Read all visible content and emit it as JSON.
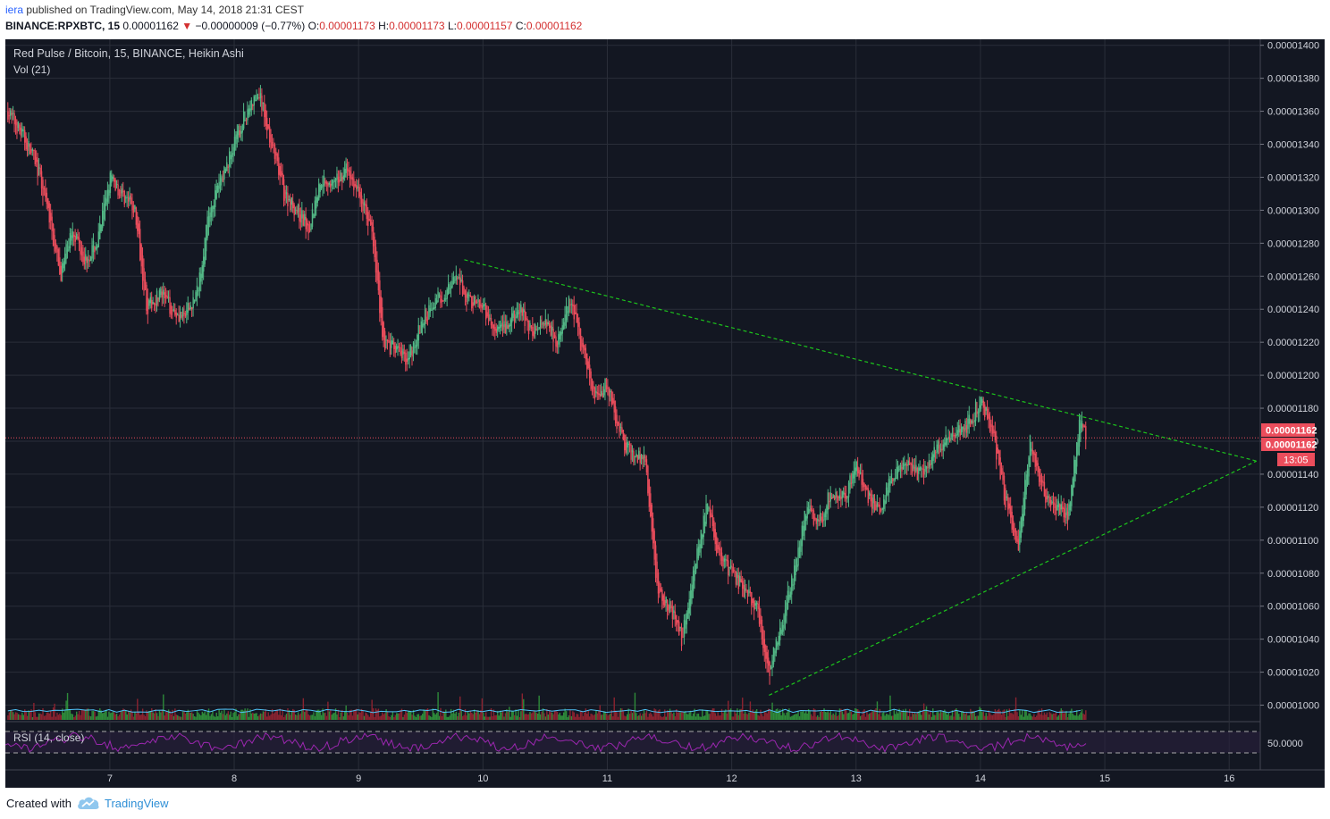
{
  "header": {
    "user": "iera",
    "published_text": "published on TradingView.com, May 14, 2018 21:31 CEST",
    "symbol": "BINANCE:RPXBTC, 15",
    "last": "0.00001162",
    "down_marker": "▼",
    "change": "−0.00000009 (−0.77%)",
    "o_label": "O:",
    "o_value": "0.00001173",
    "h_label": "H:",
    "h_value": "0.00001173",
    "l_label": "L:",
    "l_value": "0.00001157",
    "c_label": "C:",
    "c_value": "0.00001162"
  },
  "legend": {
    "title": "Red Pulse / Bitcoin, 15, BINANCE, Heikin Ashi",
    "volume": "Vol (21)",
    "rsi": "RSI (14, close)",
    "rsi_axis_label": "50.0000"
  },
  "price_labels": {
    "last_price": "0.00001162",
    "last_price_2": "0.00001162",
    "countdown": "13:05"
  },
  "footer": {
    "created_with": "Created with",
    "brand": "TradingView"
  },
  "colors": {
    "background": "#131722",
    "grid": "#2a2e39",
    "up": "#53b987",
    "down": "#eb4d5c",
    "trendline": "#1cc41c",
    "rsi": "#9c27b0",
    "vol_ma": "#4fc3f7"
  },
  "chart_data": {
    "type": "candlestick",
    "title": "Red Pulse / Bitcoin, 15, BINANCE, Heikin Ashi",
    "x_ticks": [
      "7",
      "8",
      "9",
      "10",
      "11",
      "12",
      "13",
      "14",
      "15",
      "16"
    ],
    "y_ticks": [
      "0.00001000",
      "0.00001020",
      "0.00001040",
      "0.00001060",
      "0.00001080",
      "0.00001100",
      "0.00001120",
      "0.00001140",
      "0.00001160",
      "0.00001180",
      "0.00001200",
      "0.00001220",
      "0.00001240",
      "0.00001260",
      "0.00001280",
      "0.00001300",
      "0.00001320",
      "0.00001340",
      "0.00001360",
      "0.00001380",
      "0.00001400"
    ],
    "ylim": [
      9.9e-06,
      1.402e-05
    ],
    "xlim": [
      6.16,
      16.25
    ],
    "close_path": [
      [
        6.18,
        1360
      ],
      [
        6.3,
        1345
      ],
      [
        6.4,
        1330
      ],
      [
        6.5,
        1300
      ],
      [
        6.6,
        1260
      ],
      [
        6.7,
        1290
      ],
      [
        6.8,
        1270
      ],
      [
        6.9,
        1280
      ],
      [
        7.0,
        1320
      ],
      [
        7.1,
        1310
      ],
      [
        7.2,
        1300
      ],
      [
        7.3,
        1240
      ],
      [
        7.4,
        1250
      ],
      [
        7.5,
        1240
      ],
      [
        7.6,
        1235
      ],
      [
        7.7,
        1250
      ],
      [
        7.8,
        1300
      ],
      [
        7.9,
        1320
      ],
      [
        8.0,
        1340
      ],
      [
        8.1,
        1360
      ],
      [
        8.2,
        1370
      ],
      [
        8.3,
        1340
      ],
      [
        8.4,
        1310
      ],
      [
        8.5,
        1300
      ],
      [
        8.6,
        1290
      ],
      [
        8.7,
        1320
      ],
      [
        8.8,
        1315
      ],
      [
        8.9,
        1325
      ],
      [
        9.0,
        1310
      ],
      [
        9.1,
        1290
      ],
      [
        9.2,
        1220
      ],
      [
        9.3,
        1215
      ],
      [
        9.4,
        1210
      ],
      [
        9.5,
        1230
      ],
      [
        9.6,
        1245
      ],
      [
        9.7,
        1250
      ],
      [
        9.8,
        1258
      ],
      [
        9.9,
        1245
      ],
      [
        10.0,
        1240
      ],
      [
        10.1,
        1225
      ],
      [
        10.2,
        1230
      ],
      [
        10.3,
        1240
      ],
      [
        10.4,
        1225
      ],
      [
        10.5,
        1235
      ],
      [
        10.6,
        1220
      ],
      [
        10.7,
        1245
      ],
      [
        10.8,
        1215
      ],
      [
        10.9,
        1185
      ],
      [
        11.0,
        1195
      ],
      [
        11.1,
        1165
      ],
      [
        11.2,
        1150
      ],
      [
        11.3,
        1150
      ],
      [
        11.4,
        1070
      ],
      [
        11.5,
        1060
      ],
      [
        11.6,
        1040
      ],
      [
        11.7,
        1085
      ],
      [
        11.8,
        1120
      ],
      [
        11.9,
        1090
      ],
      [
        12.0,
        1080
      ],
      [
        12.1,
        1070
      ],
      [
        12.2,
        1060
      ],
      [
        12.3,
        1020
      ],
      [
        12.4,
        1050
      ],
      [
        12.5,
        1080
      ],
      [
        12.6,
        1120
      ],
      [
        12.7,
        1110
      ],
      [
        12.8,
        1130
      ],
      [
        12.9,
        1125
      ],
      [
        13.0,
        1145
      ],
      [
        13.1,
        1125
      ],
      [
        13.2,
        1120
      ],
      [
        13.3,
        1140
      ],
      [
        13.4,
        1145
      ],
      [
        13.5,
        1140
      ],
      [
        13.6,
        1150
      ],
      [
        13.7,
        1160
      ],
      [
        13.8,
        1165
      ],
      [
        13.9,
        1170
      ],
      [
        14.0,
        1185
      ],
      [
        14.1,
        1165
      ],
      [
        14.2,
        1125
      ],
      [
        14.3,
        1095
      ],
      [
        14.4,
        1160
      ],
      [
        14.5,
        1130
      ],
      [
        14.6,
        1120
      ],
      [
        14.7,
        1115
      ],
      [
        14.8,
        1175
      ],
      [
        14.85,
        1162
      ]
    ],
    "trendlines": [
      {
        "name": "upper",
        "from": [
          9.85,
          1270
        ],
        "to": [
          16.22,
          1148
        ]
      },
      {
        "name": "lower",
        "from": [
          12.3,
          1006
        ],
        "to": [
          16.22,
          1148
        ]
      }
    ],
    "horizontal_line": 1162,
    "price_scale_unit": 1e-08
  }
}
